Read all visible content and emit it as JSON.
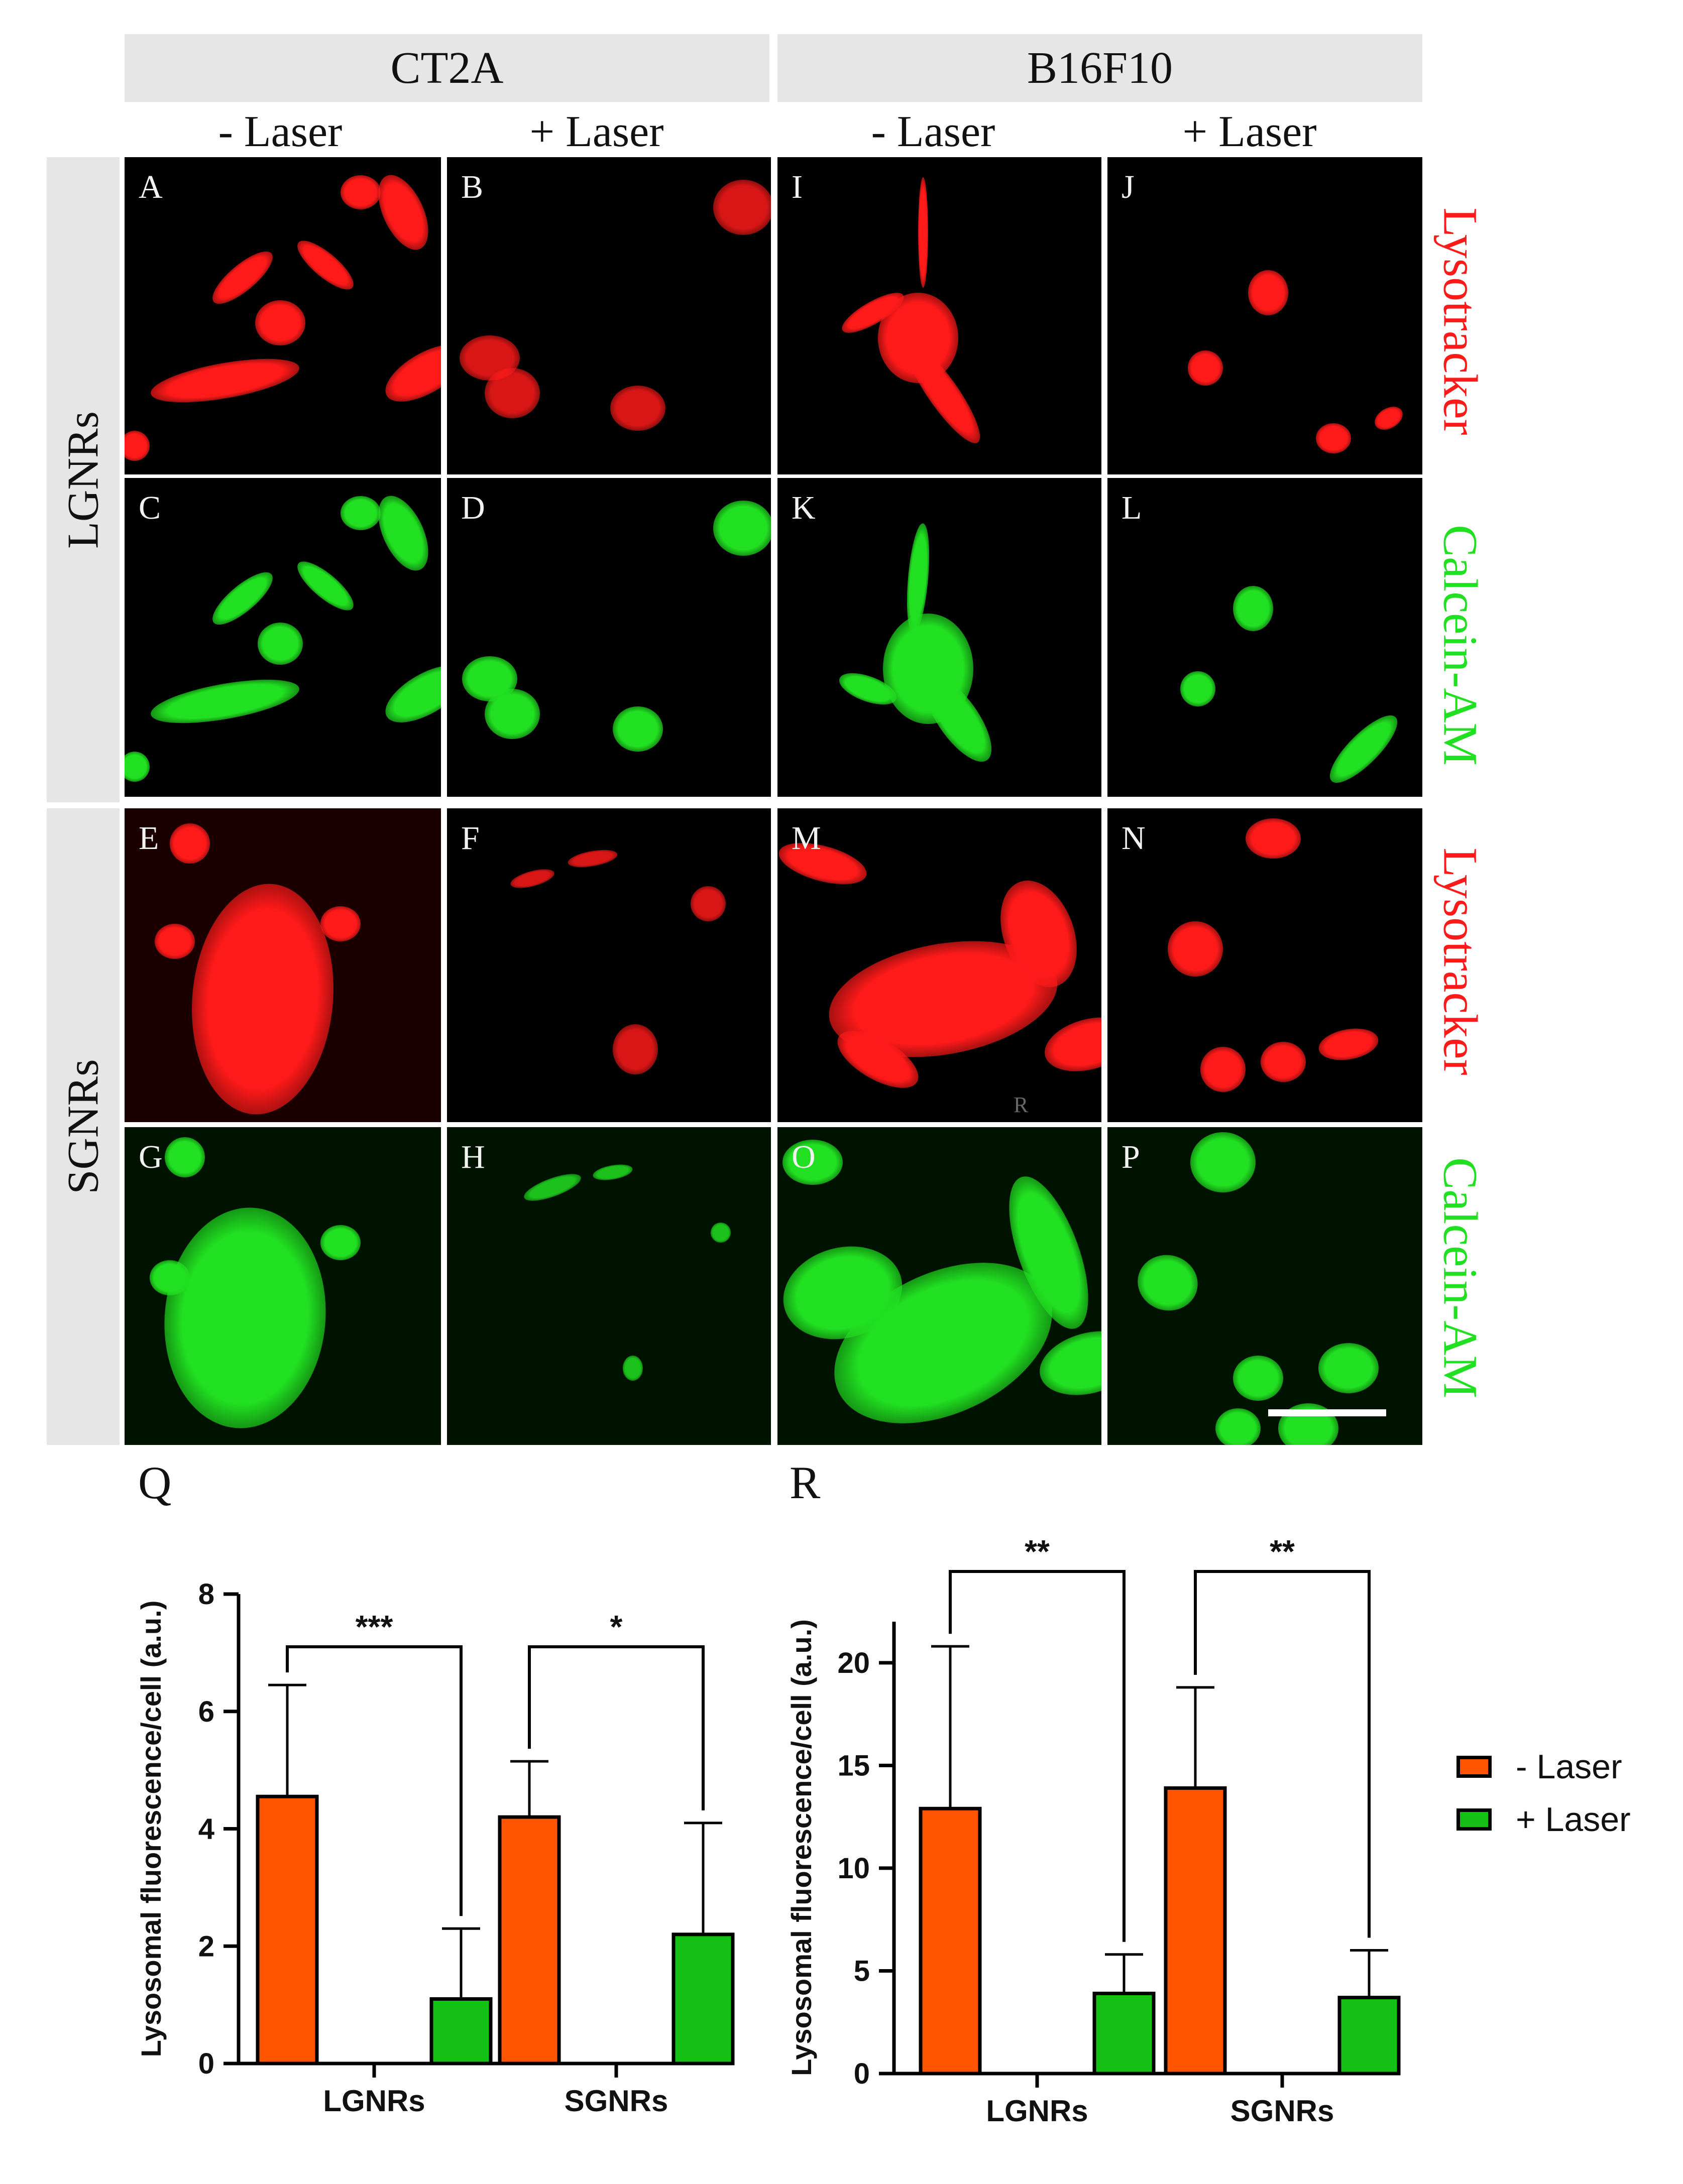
{
  "figure": {
    "columns": [
      {
        "title": "CT2A",
        "conditions": [
          "- Laser",
          "+ Laser"
        ]
      },
      {
        "title": "B16F10",
        "conditions": [
          "- Laser",
          "+ Laser"
        ]
      }
    ],
    "rows": [
      {
        "label": "LGNRs",
        "stains": [
          "Lysotracker",
          "Calcein-AM"
        ]
      },
      {
        "label": "SGNRs",
        "stains": [
          "Lysotracker",
          "Calcein-AM"
        ]
      }
    ],
    "panel_letters": [
      "A",
      "B",
      "I",
      "J",
      "C",
      "D",
      "K",
      "L",
      "E",
      "F",
      "M",
      "N",
      "G",
      "H",
      "O",
      "P"
    ],
    "stray_mark": "R",
    "colors": {
      "lysotracker": "#ff1a1a",
      "calcein": "#21e021",
      "minus_laser": "#ff5500",
      "plus_laser": "#14c014"
    }
  },
  "chart_data": [
    {
      "panel": "Q",
      "type": "bar",
      "categories": [
        "LGNRs",
        "SGNRs"
      ],
      "series": [
        {
          "name": "- Laser",
          "values": [
            4.55,
            4.2
          ],
          "error": [
            1.9,
            0.95
          ]
        },
        {
          "name": "+ Laser",
          "values": [
            1.1,
            2.2
          ],
          "error": [
            1.2,
            1.9
          ]
        }
      ],
      "ylabel": "Lysosomal fluorescence/cell (a.u.)",
      "ylim": [
        0,
        8
      ],
      "yticks": [
        "0",
        "2",
        "4",
        "6",
        "8"
      ],
      "significance": [
        "***",
        "*"
      ]
    },
    {
      "panel": "R",
      "type": "bar",
      "categories": [
        "LGNRs",
        "SGNRs"
      ],
      "series": [
        {
          "name": "- Laser",
          "values": [
            12.9,
            13.9
          ],
          "error": [
            7.9,
            4.9
          ]
        },
        {
          "name": "+ Laser",
          "values": [
            3.9,
            3.7
          ],
          "error": [
            1.9,
            2.3
          ]
        }
      ],
      "ylabel": "Lysosomal fluorescence/cell (a.u.)",
      "ylim": [
        0,
        22
      ],
      "yticks": [
        "0",
        "5",
        "10",
        "15",
        "20"
      ],
      "significance": [
        "**",
        "**"
      ]
    }
  ],
  "legend": [
    {
      "label": "- Laser",
      "color": "#ff5500"
    },
    {
      "label": "+ Laser",
      "color": "#14c014"
    }
  ]
}
